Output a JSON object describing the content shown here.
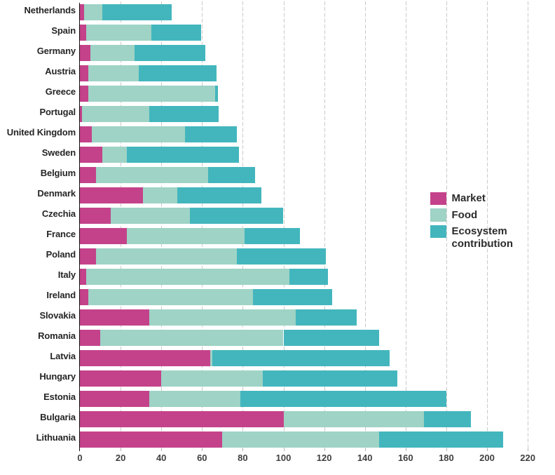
{
  "chart_data": {
    "type": "bar",
    "orientation": "horizontal",
    "stacked": true,
    "title": "",
    "xlabel": "",
    "ylabel": "",
    "categories": [
      "Netherlands",
      "Spain",
      "Germany",
      "Austria",
      "Greece",
      "Portugal",
      "United Kingdom",
      "Sweden",
      "Belgium",
      "Denmark",
      "Czechia",
      "France",
      "Poland",
      "Italy",
      "Ireland",
      "Slovakia",
      "Romania",
      "Latvia",
      "Hungary",
      "Estonia",
      "Bulgaria",
      "Lithuania"
    ],
    "series": [
      {
        "name": "Market",
        "color": "#c4428a",
        "values": [
          2,
          3,
          5,
          4,
          4,
          1,
          6,
          11,
          8,
          31,
          15,
          23,
          8,
          3,
          4,
          34,
          10,
          64,
          40,
          34,
          100,
          70
        ]
      },
      {
        "name": "Food",
        "color": "#9ed3c5",
        "values": [
          9,
          32,
          22,
          25,
          62.5,
          33,
          45.5,
          12,
          55,
          17,
          39,
          58,
          69,
          100,
          81,
          72,
          90,
          1,
          50,
          45,
          69,
          77
        ]
      },
      {
        "name": "Ecosystem contribution",
        "color": "#43b6bd",
        "values": [
          34,
          24.5,
          34.5,
          38,
          1.2,
          34,
          25.5,
          55,
          23,
          41,
          46,
          27,
          44,
          19,
          39,
          30,
          47,
          87,
          66,
          101,
          23,
          61
        ]
      }
    ],
    "xlim": [
      0,
      220
    ],
    "x_ticks": [
      0,
      20,
      40,
      60,
      80,
      100,
      120,
      140,
      160,
      180,
      200,
      220
    ],
    "grid": "vertical dashed gridlines every 20 units",
    "legend_position": "center right"
  },
  "legend": {
    "items": [
      {
        "label": "Market",
        "color": "#c4428a"
      },
      {
        "label": "Food",
        "color": "#9ed3c5"
      },
      {
        "label": "Ecosystem contribution",
        "color": "#43b6bd"
      }
    ]
  },
  "colors": {
    "background": "#ffffff",
    "axis_line": "#111111",
    "gridline": "#c7c7c7",
    "tick_mark": "#a9a9a9",
    "tick_label": "#3f3f3f",
    "category_label": "#252525",
    "legend_text": "#2b2b2b"
  }
}
